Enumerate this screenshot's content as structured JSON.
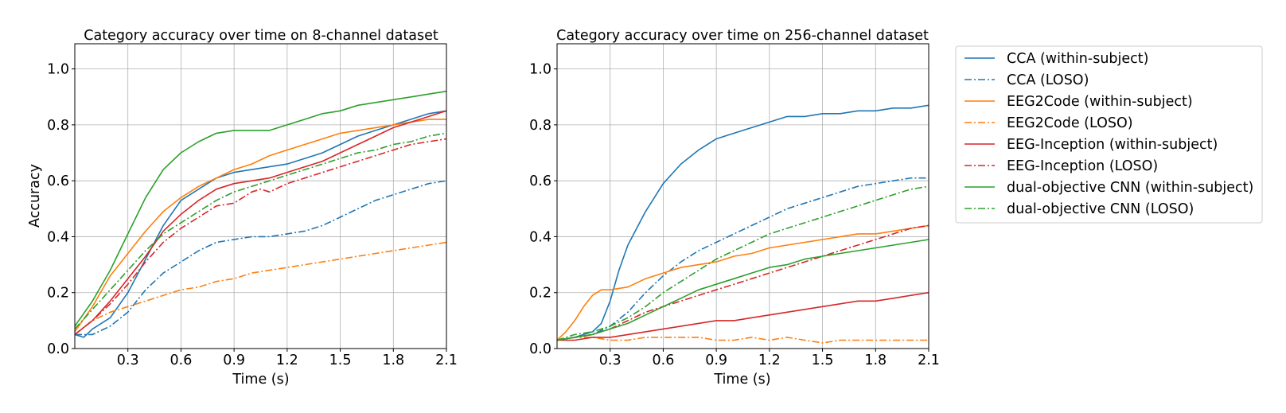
{
  "colors": {
    "CCA": "#1f77b4",
    "EEG2Code": "#ff7f0e",
    "EEG-Inception": "#d62728",
    "dual-objective CNN": "#2ca02c"
  },
  "legend": {
    "position": "outside-right",
    "entries": [
      {
        "label": "CCA (within-subject)",
        "color": "#1f77b4",
        "style": "solid"
      },
      {
        "label": "CCA (LOSO)",
        "color": "#1f77b4",
        "style": "dashdot"
      },
      {
        "label": "EEG2Code (within-subject)",
        "color": "#ff7f0e",
        "style": "solid"
      },
      {
        "label": "EEG2Code (LOSO)",
        "color": "#ff7f0e",
        "style": "dashdot"
      },
      {
        "label": "EEG-Inception (within-subject)",
        "color": "#d62728",
        "style": "solid"
      },
      {
        "label": "EEG-Inception (LOSO)",
        "color": "#d62728",
        "style": "dashdot"
      },
      {
        "label": "dual-objective CNN (within-subject)",
        "color": "#2ca02c",
        "style": "solid"
      },
      {
        "label": "dual-objective CNN (LOSO)",
        "color": "#2ca02c",
        "style": "dashdot"
      }
    ]
  },
  "chart_data": [
    {
      "type": "line",
      "title": "Category accuracy over time on 8-channel dataset",
      "xlabel": "Time (s)",
      "ylabel": "Accuracy",
      "xlim": [
        0.0,
        2.1
      ],
      "ylim": [
        0.0,
        1.09
      ],
      "grid": true,
      "xticks": [
        0.3,
        0.6,
        0.9,
        1.2,
        1.5,
        1.8,
        2.1
      ],
      "xtick_labels": [
        "0.3",
        "0.6",
        "0.9",
        "1.2",
        "1.5",
        "1.8",
        "2.1"
      ],
      "yticks": [
        0.0,
        0.2,
        0.4,
        0.6,
        0.8,
        1.0
      ],
      "ytick_labels": [
        "0.0",
        "0.2",
        "0.4",
        "0.6",
        "0.8",
        "1.0"
      ],
      "series": [
        {
          "name": "CCA (within-subject)",
          "color": "#1f77b4",
          "style": "solid",
          "x": [
            0.0,
            0.05,
            0.1,
            0.2,
            0.3,
            0.4,
            0.5,
            0.6,
            0.7,
            0.8,
            0.9,
            1.0,
            1.1,
            1.2,
            1.3,
            1.4,
            1.5,
            1.6,
            1.7,
            1.8,
            1.9,
            2.0,
            2.1
          ],
          "y": [
            0.05,
            0.04,
            0.07,
            0.11,
            0.2,
            0.32,
            0.44,
            0.53,
            0.57,
            0.61,
            0.63,
            0.64,
            0.65,
            0.66,
            0.68,
            0.7,
            0.73,
            0.76,
            0.78,
            0.8,
            0.82,
            0.84,
            0.85
          ]
        },
        {
          "name": "CCA (LOSO)",
          "color": "#1f77b4",
          "style": "dashdot",
          "x": [
            0.0,
            0.1,
            0.2,
            0.3,
            0.4,
            0.5,
            0.6,
            0.7,
            0.8,
            0.9,
            1.0,
            1.1,
            1.2,
            1.3,
            1.4,
            1.5,
            1.6,
            1.7,
            1.8,
            1.9,
            2.0,
            2.1
          ],
          "y": [
            0.05,
            0.05,
            0.08,
            0.13,
            0.21,
            0.27,
            0.31,
            0.35,
            0.38,
            0.39,
            0.4,
            0.4,
            0.41,
            0.42,
            0.44,
            0.47,
            0.5,
            0.53,
            0.55,
            0.57,
            0.59,
            0.6
          ]
        },
        {
          "name": "EEG2Code (within-subject)",
          "color": "#ff7f0e",
          "style": "solid",
          "x": [
            0.0,
            0.1,
            0.2,
            0.3,
            0.4,
            0.5,
            0.6,
            0.7,
            0.8,
            0.9,
            1.0,
            1.1,
            1.2,
            1.3,
            1.4,
            1.5,
            1.6,
            1.7,
            1.8,
            1.9,
            2.0,
            2.1
          ],
          "y": [
            0.06,
            0.15,
            0.26,
            0.34,
            0.42,
            0.49,
            0.54,
            0.58,
            0.61,
            0.64,
            0.66,
            0.69,
            0.71,
            0.73,
            0.75,
            0.77,
            0.78,
            0.79,
            0.8,
            0.81,
            0.82,
            0.82
          ]
        },
        {
          "name": "EEG2Code (LOSO)",
          "color": "#ff7f0e",
          "style": "dashdot",
          "x": [
            0.0,
            0.1,
            0.2,
            0.3,
            0.4,
            0.5,
            0.6,
            0.7,
            0.8,
            0.9,
            1.0,
            1.1,
            1.2,
            1.3,
            1.4,
            1.5,
            1.6,
            1.7,
            1.8,
            1.9,
            2.0,
            2.1
          ],
          "y": [
            0.05,
            0.1,
            0.13,
            0.15,
            0.17,
            0.19,
            0.21,
            0.22,
            0.24,
            0.25,
            0.27,
            0.28,
            0.29,
            0.3,
            0.31,
            0.32,
            0.33,
            0.34,
            0.35,
            0.36,
            0.37,
            0.38
          ]
        },
        {
          "name": "EEG-Inception (within-subject)",
          "color": "#d62728",
          "style": "solid",
          "x": [
            0.0,
            0.1,
            0.2,
            0.3,
            0.4,
            0.5,
            0.6,
            0.7,
            0.8,
            0.9,
            1.0,
            1.1,
            1.2,
            1.3,
            1.4,
            1.5,
            1.6,
            1.7,
            1.8,
            1.9,
            2.0,
            2.1
          ],
          "y": [
            0.05,
            0.1,
            0.17,
            0.25,
            0.33,
            0.42,
            0.48,
            0.53,
            0.57,
            0.59,
            0.6,
            0.61,
            0.63,
            0.65,
            0.67,
            0.7,
            0.73,
            0.76,
            0.79,
            0.81,
            0.83,
            0.85
          ]
        },
        {
          "name": "EEG-Inception (LOSO)",
          "color": "#d62728",
          "style": "dashdot",
          "x": [
            0.0,
            0.1,
            0.2,
            0.3,
            0.4,
            0.5,
            0.6,
            0.7,
            0.8,
            0.9,
            1.0,
            1.05,
            1.1,
            1.2,
            1.3,
            1.4,
            1.5,
            1.6,
            1.7,
            1.8,
            1.9,
            2.0,
            2.1
          ],
          "y": [
            0.05,
            0.1,
            0.16,
            0.23,
            0.31,
            0.38,
            0.43,
            0.47,
            0.51,
            0.52,
            0.56,
            0.57,
            0.56,
            0.59,
            0.61,
            0.63,
            0.65,
            0.67,
            0.69,
            0.71,
            0.73,
            0.74,
            0.75
          ]
        },
        {
          "name": "dual-objective CNN (within-subject)",
          "color": "#2ca02c",
          "style": "solid",
          "x": [
            0.0,
            0.1,
            0.2,
            0.3,
            0.4,
            0.5,
            0.6,
            0.7,
            0.8,
            0.85,
            0.9,
            1.0,
            1.1,
            1.15,
            1.2,
            1.3,
            1.4,
            1.5,
            1.6,
            1.7,
            1.8,
            1.9,
            2.0,
            2.1
          ],
          "y": [
            0.08,
            0.17,
            0.28,
            0.41,
            0.54,
            0.64,
            0.7,
            0.74,
            0.77,
            0.775,
            0.78,
            0.78,
            0.78,
            0.79,
            0.8,
            0.82,
            0.84,
            0.85,
            0.87,
            0.88,
            0.89,
            0.9,
            0.91,
            0.92
          ]
        },
        {
          "name": "dual-objective CNN (LOSO)",
          "color": "#2ca02c",
          "style": "dashdot",
          "x": [
            0.0,
            0.1,
            0.2,
            0.3,
            0.4,
            0.5,
            0.6,
            0.7,
            0.8,
            0.9,
            1.0,
            1.1,
            1.2,
            1.3,
            1.4,
            1.5,
            1.6,
            1.7,
            1.8,
            1.9,
            2.0,
            2.1
          ],
          "y": [
            0.07,
            0.14,
            0.21,
            0.28,
            0.35,
            0.41,
            0.45,
            0.49,
            0.53,
            0.56,
            0.58,
            0.6,
            0.62,
            0.64,
            0.66,
            0.68,
            0.7,
            0.71,
            0.73,
            0.74,
            0.76,
            0.77
          ]
        }
      ]
    },
    {
      "type": "line",
      "title": "Category accuracy over time on 256-channel dataset",
      "xlabel": "Time (s)",
      "ylabel": "",
      "xlim": [
        0.0,
        2.1
      ],
      "ylim": [
        0.0,
        1.09
      ],
      "grid": true,
      "xticks": [
        0.3,
        0.6,
        0.9,
        1.2,
        1.5,
        1.8,
        2.1
      ],
      "xtick_labels": [
        "0.3",
        "0.6",
        "0.9",
        "1.2",
        "1.5",
        "1.8",
        "2.1"
      ],
      "yticks": [
        0.0,
        0.2,
        0.4,
        0.6,
        0.8,
        1.0
      ],
      "ytick_labels": [
        "0.0",
        "0.2",
        "0.4",
        "0.6",
        "0.8",
        "1.0"
      ],
      "series": [
        {
          "name": "CCA (within-subject)",
          "color": "#1f77b4",
          "style": "solid",
          "x": [
            0.0,
            0.1,
            0.2,
            0.25,
            0.3,
            0.35,
            0.4,
            0.5,
            0.6,
            0.7,
            0.8,
            0.9,
            1.0,
            1.1,
            1.2,
            1.3,
            1.4,
            1.5,
            1.6,
            1.7,
            1.8,
            1.9,
            2.0,
            2.1
          ],
          "y": [
            0.03,
            0.04,
            0.06,
            0.09,
            0.17,
            0.28,
            0.37,
            0.49,
            0.59,
            0.66,
            0.71,
            0.75,
            0.77,
            0.79,
            0.81,
            0.83,
            0.83,
            0.84,
            0.84,
            0.85,
            0.85,
            0.86,
            0.86,
            0.87
          ]
        },
        {
          "name": "CCA (LOSO)",
          "color": "#1f77b4",
          "style": "dashdot",
          "x": [
            0.0,
            0.1,
            0.2,
            0.3,
            0.4,
            0.5,
            0.6,
            0.7,
            0.8,
            0.9,
            1.0,
            1.1,
            1.2,
            1.3,
            1.4,
            1.5,
            1.6,
            1.7,
            1.8,
            1.9,
            2.0,
            2.1
          ],
          "y": [
            0.03,
            0.04,
            0.05,
            0.08,
            0.13,
            0.2,
            0.26,
            0.31,
            0.35,
            0.38,
            0.41,
            0.44,
            0.47,
            0.5,
            0.52,
            0.54,
            0.56,
            0.58,
            0.59,
            0.6,
            0.61,
            0.61
          ]
        },
        {
          "name": "EEG2Code (within-subject)",
          "color": "#ff7f0e",
          "style": "solid",
          "x": [
            0.0,
            0.05,
            0.1,
            0.15,
            0.2,
            0.25,
            0.3,
            0.4,
            0.5,
            0.6,
            0.7,
            0.8,
            0.9,
            1.0,
            1.1,
            1.2,
            1.3,
            1.4,
            1.5,
            1.6,
            1.7,
            1.8,
            1.9,
            2.0,
            2.1
          ],
          "y": [
            0.03,
            0.06,
            0.1,
            0.15,
            0.19,
            0.21,
            0.21,
            0.22,
            0.25,
            0.27,
            0.29,
            0.3,
            0.31,
            0.33,
            0.34,
            0.36,
            0.37,
            0.38,
            0.39,
            0.4,
            0.41,
            0.41,
            0.42,
            0.43,
            0.44
          ]
        },
        {
          "name": "EEG2Code (LOSO)",
          "color": "#ff7f0e",
          "style": "dashdot",
          "x": [
            0.0,
            0.1,
            0.2,
            0.3,
            0.4,
            0.5,
            0.6,
            0.7,
            0.8,
            0.9,
            1.0,
            1.1,
            1.2,
            1.3,
            1.4,
            1.5,
            1.6,
            1.7,
            1.8,
            1.9,
            2.0,
            2.1
          ],
          "y": [
            0.03,
            0.04,
            0.04,
            0.03,
            0.03,
            0.04,
            0.04,
            0.04,
            0.04,
            0.03,
            0.03,
            0.04,
            0.03,
            0.04,
            0.03,
            0.02,
            0.03,
            0.03,
            0.03,
            0.03,
            0.03,
            0.03
          ]
        },
        {
          "name": "EEG-Inception (within-subject)",
          "color": "#d62728",
          "style": "solid",
          "x": [
            0.0,
            0.1,
            0.2,
            0.3,
            0.4,
            0.5,
            0.6,
            0.7,
            0.8,
            0.9,
            1.0,
            1.1,
            1.2,
            1.3,
            1.4,
            1.5,
            1.6,
            1.7,
            1.8,
            1.9,
            2.0,
            2.1
          ],
          "y": [
            0.03,
            0.03,
            0.04,
            0.04,
            0.05,
            0.06,
            0.07,
            0.08,
            0.09,
            0.1,
            0.1,
            0.11,
            0.12,
            0.13,
            0.14,
            0.15,
            0.16,
            0.17,
            0.17,
            0.18,
            0.19,
            0.2
          ]
        },
        {
          "name": "EEG-Inception (LOSO)",
          "color": "#d62728",
          "style": "dashdot",
          "x": [
            0.0,
            0.1,
            0.2,
            0.3,
            0.4,
            0.5,
            0.6,
            0.7,
            0.8,
            0.9,
            1.0,
            1.1,
            1.2,
            1.3,
            1.4,
            1.5,
            1.6,
            1.7,
            1.8,
            1.9,
            2.0,
            2.1
          ],
          "y": [
            0.03,
            0.04,
            0.05,
            0.07,
            0.1,
            0.13,
            0.15,
            0.17,
            0.19,
            0.21,
            0.23,
            0.25,
            0.27,
            0.29,
            0.31,
            0.33,
            0.35,
            0.37,
            0.39,
            0.41,
            0.43,
            0.44
          ]
        },
        {
          "name": "dual-objective CNN (within-subject)",
          "color": "#2ca02c",
          "style": "solid",
          "x": [
            0.0,
            0.1,
            0.2,
            0.3,
            0.4,
            0.5,
            0.6,
            0.7,
            0.8,
            0.9,
            1.0,
            1.1,
            1.2,
            1.3,
            1.4,
            1.5,
            1.6,
            1.7,
            1.8,
            1.9,
            2.0,
            2.1
          ],
          "y": [
            0.03,
            0.04,
            0.05,
            0.07,
            0.09,
            0.12,
            0.15,
            0.18,
            0.21,
            0.23,
            0.25,
            0.27,
            0.29,
            0.3,
            0.32,
            0.33,
            0.34,
            0.35,
            0.36,
            0.37,
            0.38,
            0.39
          ]
        },
        {
          "name": "dual-objective CNN (LOSO)",
          "color": "#2ca02c",
          "style": "dashdot",
          "x": [
            0.0,
            0.1,
            0.2,
            0.3,
            0.4,
            0.5,
            0.6,
            0.7,
            0.8,
            0.9,
            1.0,
            1.1,
            1.2,
            1.3,
            1.4,
            1.5,
            1.6,
            1.7,
            1.8,
            1.9,
            2.0,
            2.1
          ],
          "y": [
            0.03,
            0.05,
            0.06,
            0.08,
            0.11,
            0.15,
            0.2,
            0.24,
            0.28,
            0.32,
            0.35,
            0.38,
            0.41,
            0.43,
            0.45,
            0.47,
            0.49,
            0.51,
            0.53,
            0.55,
            0.57,
            0.58
          ]
        }
      ]
    }
  ]
}
